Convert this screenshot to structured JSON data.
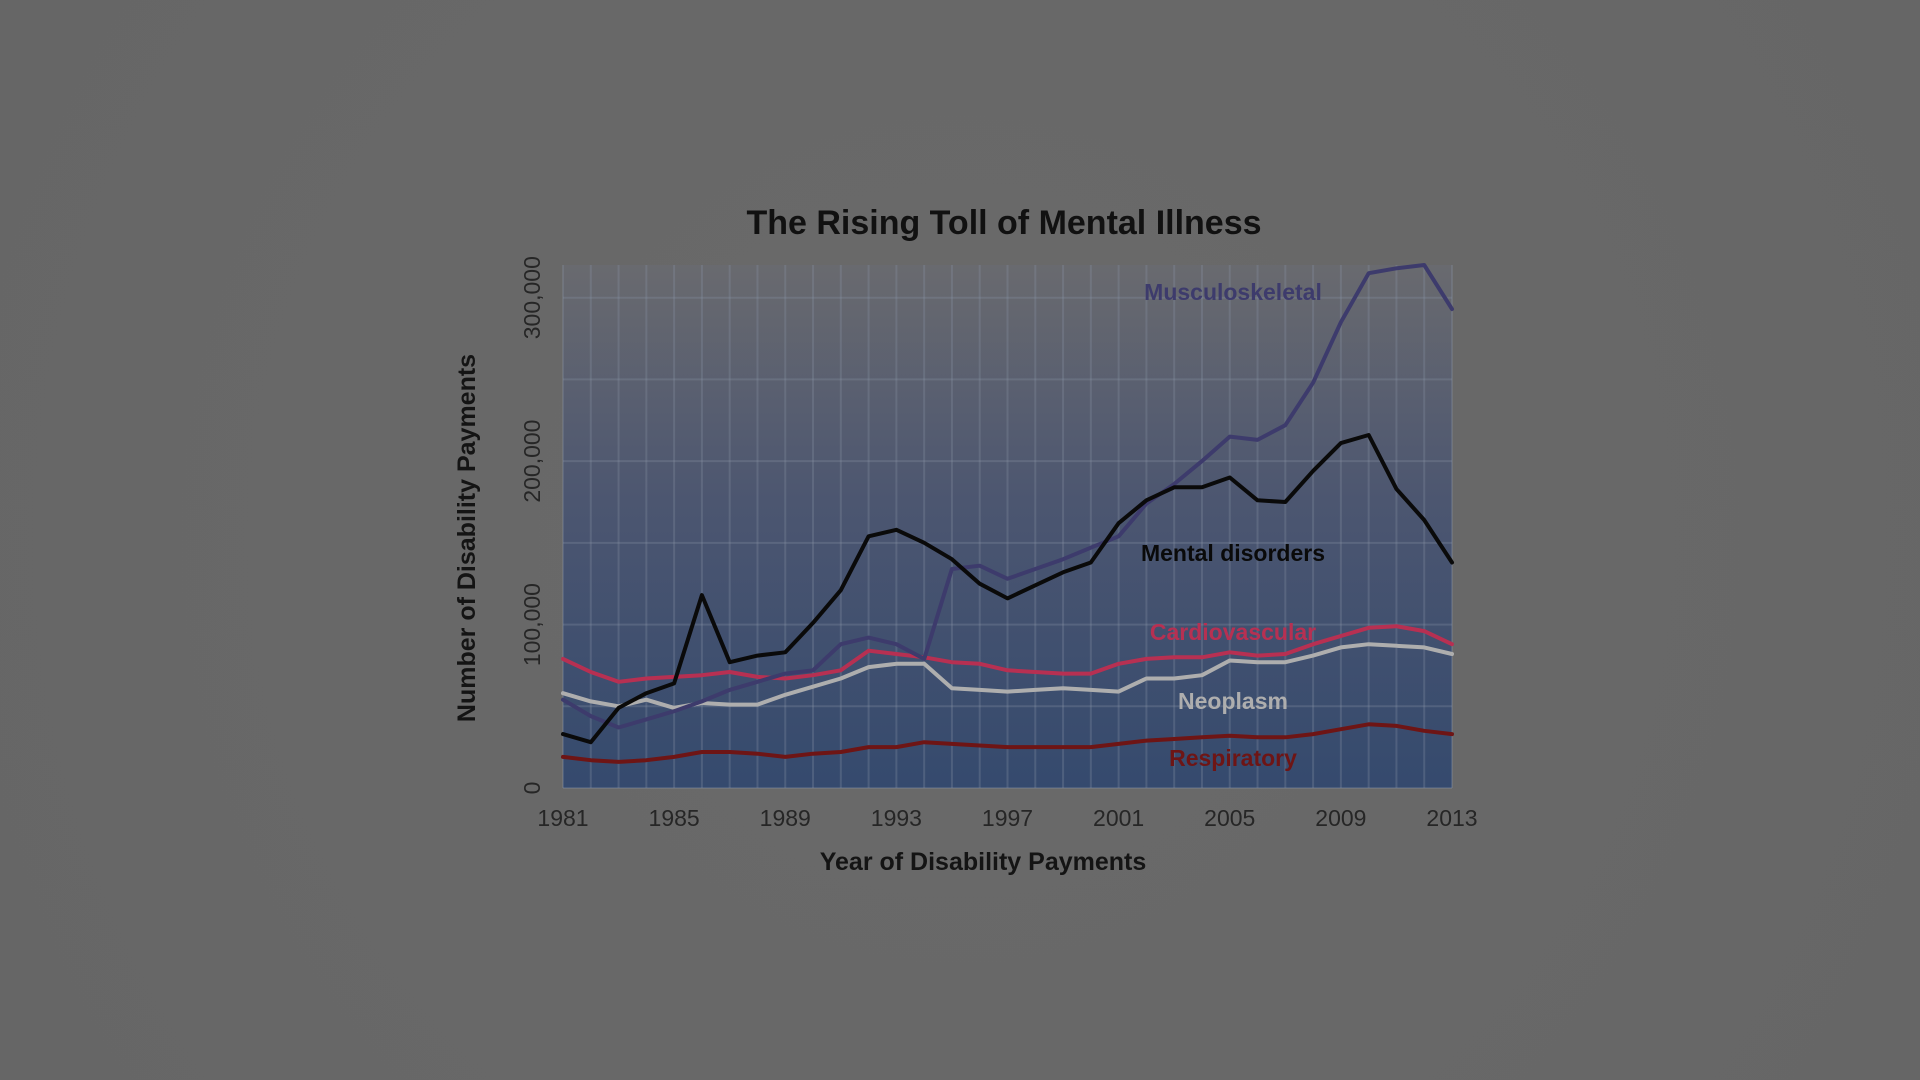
{
  "chart_data": {
    "type": "line",
    "title": "The Rising Toll of Mental Illness",
    "xlabel": "Year of Disability Payments",
    "ylabel": "Number of Disability Payments",
    "xlim": [
      1981,
      2013
    ],
    "ylim": [
      0,
      320000
    ],
    "x_ticks": [
      1981,
      1985,
      1989,
      1993,
      1997,
      2001,
      2005,
      2009,
      2013
    ],
    "x_tick_labels": [
      "1981",
      "1985",
      "1989",
      "1993",
      "1997",
      "2001",
      "2005",
      "2009",
      "2013"
    ],
    "y_ticks": [
      0,
      100000,
      200000,
      300000
    ],
    "y_tick_labels": [
      "0",
      "100,000",
      "200,000",
      "300,000"
    ],
    "grid": true,
    "legend": "inline labels",
    "x": [
      1981,
      1982,
      1983,
      1984,
      1985,
      1986,
      1987,
      1988,
      1989,
      1990,
      1991,
      1992,
      1993,
      1994,
      1995,
      1996,
      1997,
      1998,
      1999,
      2000,
      2001,
      2002,
      2003,
      2004,
      2005,
      2006,
      2007,
      2008,
      2009,
      2010,
      2011,
      2012,
      2013
    ],
    "series": [
      {
        "name": "Musculoskeletal",
        "color": "#3d3b6c",
        "values": [
          54000,
          44000,
          37000,
          42000,
          47000,
          53000,
          60000,
          65000,
          70000,
          72000,
          88000,
          92000,
          88000,
          79000,
          134000,
          136000,
          128000,
          134000,
          140000,
          147000,
          154000,
          174000,
          186000,
          200000,
          215000,
          213000,
          222000,
          248000,
          285000,
          315000,
          318000,
          320000,
          293000
        ]
      },
      {
        "name": "Mental disorders",
        "color": "#0a0a0a",
        "values": [
          33000,
          28000,
          49000,
          58000,
          64000,
          118000,
          77000,
          81000,
          83000,
          101000,
          121000,
          154000,
          158000,
          150000,
          140000,
          125000,
          116000,
          124000,
          132000,
          138000,
          162000,
          176000,
          184000,
          184000,
          190000,
          176000,
          175000,
          194000,
          211000,
          216000,
          183000,
          164000,
          138000
        ]
      },
      {
        "name": "Cardiovascular",
        "color": "#b73052",
        "values": [
          79000,
          71000,
          65000,
          67000,
          68000,
          69000,
          71000,
          68000,
          67000,
          69000,
          72000,
          84000,
          82000,
          80000,
          77000,
          76000,
          72000,
          71000,
          70000,
          70000,
          76000,
          79000,
          80000,
          80000,
          83000,
          81000,
          82000,
          88000,
          93000,
          98000,
          99000,
          96000,
          88000
        ]
      },
      {
        "name": "Neoplasm",
        "color": "#aeaeae",
        "values": [
          58000,
          53000,
          50000,
          54000,
          49000,
          52000,
          51000,
          51000,
          57000,
          62000,
          67000,
          74000,
          76000,
          76000,
          61000,
          60000,
          59000,
          60000,
          61000,
          60000,
          59000,
          67000,
          67000,
          69000,
          78000,
          77000,
          77000,
          81000,
          86000,
          88000,
          87000,
          86000,
          82000
        ]
      },
      {
        "name": "Respiratory",
        "color": "#6e1515",
        "values": [
          19000,
          17000,
          16000,
          17000,
          19000,
          22000,
          22000,
          21000,
          19000,
          21000,
          22000,
          25000,
          25000,
          28000,
          27000,
          26000,
          25000,
          25000,
          25000,
          25000,
          27000,
          29000,
          30000,
          31000,
          32000,
          31000,
          31000,
          33000,
          36000,
          39000,
          38000,
          35000,
          33000
        ]
      }
    ]
  }
}
